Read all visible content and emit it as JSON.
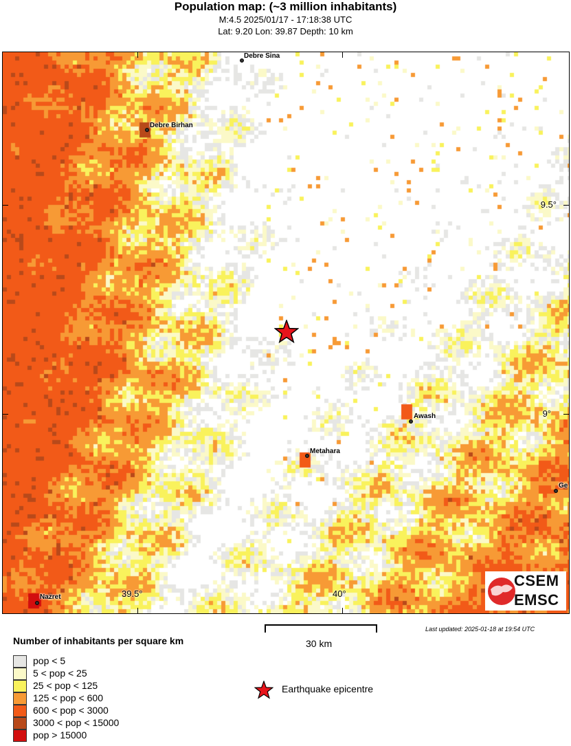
{
  "header": {
    "title": "Population map: (~3 million inhabitants)",
    "subtitle1": "M:4.5 2025/01/17 - 17:18:38 UTC",
    "subtitle2": "Lat: 9.20 Lon: 39.87 Depth: 10 km"
  },
  "map": {
    "cities": [
      {
        "name": "Debre Sina"
      },
      {
        "name": "Debre Birhan"
      },
      {
        "name": "Awash"
      },
      {
        "name": "Metahara"
      },
      {
        "name": "Ge"
      },
      {
        "name": "Nazret"
      }
    ],
    "lat_ticks": [
      "9.5°",
      "9°"
    ],
    "lon_ticks": [
      "39.5°",
      "40°"
    ],
    "epicenter": {
      "lat": 9.2,
      "lon": 39.87,
      "icon": "star-icon",
      "color": "#e8141b"
    },
    "logo": {
      "top": "CSEM",
      "bottom": "EMSC"
    }
  },
  "scale_bar": {
    "label": "30 km"
  },
  "updated": "Last updated: 2025-01-18 at 19:54 UTC",
  "legend": {
    "title": "Number of inhabitants per square km",
    "items": [
      {
        "label": "pop < 5",
        "color": "#e6e6e4"
      },
      {
        "label": "5 < pop < 25",
        "color": "#fbf9c8"
      },
      {
        "label": "25 < pop < 125",
        "color": "#f9f25c"
      },
      {
        "label": "125 < pop < 600",
        "color": "#f79a35"
      },
      {
        "label": "600 < pop < 3000",
        "color": "#f25a18"
      },
      {
        "label": "3000 < pop < 15000",
        "color": "#b8491a"
      },
      {
        "label": "pop > 15000",
        "color": "#d20e0e"
      }
    ],
    "epicentre_label": "Earthquake epicentre"
  }
}
